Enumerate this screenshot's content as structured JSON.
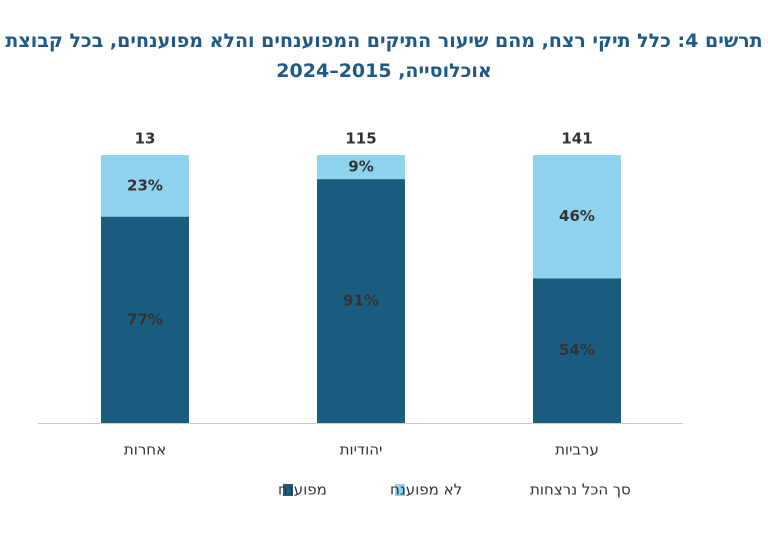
{
  "chart_data": {
    "type": "stacked_bar_percent",
    "title": "תרשים 4: כלל תיקי רצח, מהם שיעור התיקים המפוענחים והלא מפוענחים, בכל קבוצת אוכלוסייה, 2015–2024",
    "categories": [
      "אחרות",
      "יהודיות",
      "ערביות"
    ],
    "series": [
      {
        "name": "מפוענח",
        "color": "#1b5d80",
        "values": [
          77,
          91,
          54
        ],
        "value_labels": [
          "77%",
          "91%",
          "54%"
        ]
      },
      {
        "name": "לא מפוענח",
        "color": "#8fd3ef",
        "values": [
          23,
          9,
          46
        ],
        "value_labels": [
          "23%",
          "9%",
          "46%"
        ]
      }
    ],
    "totals": {
      "name": "סך הכל נרצחות",
      "values": [
        13,
        115,
        141
      ]
    }
  }
}
